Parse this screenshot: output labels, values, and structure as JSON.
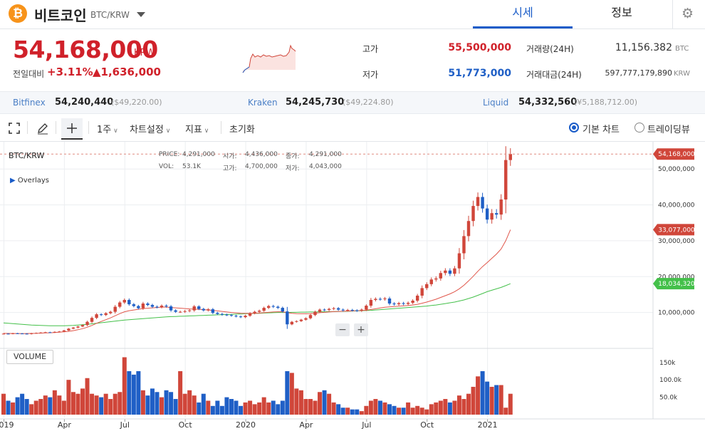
{
  "header": {
    "logo_symbol": "₿",
    "coin_name": "비트코인",
    "pair": "BTC/KRW",
    "tabs": [
      {
        "label": "시세",
        "active": true
      },
      {
        "label": "정보",
        "active": false
      }
    ]
  },
  "price": {
    "current": "54,168,000",
    "unit": "KRW",
    "change_label": "전일대비",
    "change_pct": "+3.11%",
    "change_val": "▲1,636,000",
    "high_label": "고가",
    "high": "55,500,000",
    "low_label": "저가",
    "low": "51,773,000",
    "volume_label": "거래량(24H)",
    "volume": "11,156.382",
    "volume_unit": "BTC",
    "amount_label": "거래대금(24H)",
    "amount": "597,777,179,890",
    "amount_unit": "KRW"
  },
  "exchanges": [
    {
      "name": "Bitfinex",
      "value": "54,240,440",
      "sub": "($49,220.00)"
    },
    {
      "name": "Kraken",
      "value": "54,245,730",
      "sub": "($49,224.80)"
    },
    {
      "name": "Liquid",
      "value": "54,332,560",
      "sub": "(¥5,188,712.00)"
    }
  ],
  "toolbar": {
    "period": "1주",
    "chart_settings": "차트설정",
    "indicators": "지표",
    "reset": "초기화",
    "basic_chart": "기본 차트",
    "tradingview": "트레이딩뷰"
  },
  "chart_data": {
    "type": "candlestick",
    "symbol": "BTC/KRW",
    "overlays_label": "Overlays",
    "volume_label": "VOLUME",
    "info": {
      "price_label": "PRICE:",
      "price": "4,291,000",
      "open_label": "시가:",
      "open": "4,436,000",
      "close_label": "종가:",
      "close": "4,291,000",
      "vol_label": "VOL:",
      "vol": "53.1K",
      "high_label": "고가:",
      "high": "4,700,000",
      "low_label": "저가:",
      "low": "4,043,000"
    },
    "y_ticks": [
      "50,000,000",
      "40,000,000",
      "30,000,000",
      "20,000,000",
      "10,000,000"
    ],
    "y_tick_values": [
      50000000,
      40000000,
      30000000,
      20000000,
      10000000
    ],
    "ylim": [
      0,
      56000000
    ],
    "vol_ticks": [
      "150k",
      "100.0k",
      "50.0k"
    ],
    "vol_tick_values": [
      150000,
      100000,
      50000
    ],
    "vol_max": 170000,
    "x_ticks": [
      "2019",
      "Apr",
      "Jul",
      "Oct",
      "2020",
      "Apr",
      "Jul",
      "Oct",
      "2021"
    ],
    "x_tick_index": [
      0,
      13,
      26,
      39,
      52,
      65,
      78,
      91,
      104
    ],
    "price_tag": "54,168,000",
    "ma_tag_red": "33,077,000",
    "ma_tag_green": "18,034,320",
    "colors": {
      "up": "#d0463a",
      "down": "#1f5fc6",
      "ma_short": "#e0564a",
      "ma_long": "#44c04a"
    },
    "closes": [
      4100000,
      4050000,
      4200000,
      4150000,
      4100000,
      4000000,
      4200000,
      4300000,
      4400000,
      4500000,
      4450000,
      4600000,
      4700000,
      5000000,
      5500000,
      5800000,
      6100000,
      6500000,
      7400000,
      8500000,
      9500000,
      9300000,
      9800000,
      10200000,
      11600000,
      12800000,
      13500000,
      12300000,
      11800000,
      11200000,
      12500000,
      12100000,
      11600000,
      11500000,
      11900000,
      11700000,
      10600000,
      10200000,
      10200000,
      10400000,
      10600000,
      11700000,
      11000000,
      10600000,
      10900000,
      9900000,
      9600000,
      9400000,
      9300000,
      9100000,
      8900000,
      8700000,
      9100000,
      9800000,
      10200000,
      10500000,
      11300000,
      11800000,
      11600000,
      11300000,
      10300000,
      6700000,
      7400000,
      7600000,
      8000000,
      8400000,
      9300000,
      10200000,
      10800000,
      10700000,
      11000000,
      11200000,
      10800000,
      10600000,
      10700000,
      10600000,
      10500000,
      10800000,
      11900000,
      13500000,
      13800000,
      13700000,
      13900000,
      12500000,
      12300000,
      12600000,
      12400000,
      12700000,
      13300000,
      14700000,
      16800000,
      17900000,
      19200000,
      19500000,
      21000000,
      21700000,
      20800000,
      22300000,
      26500000,
      31300000,
      35500000,
      39700000,
      42200000,
      39000000,
      35900000,
      37700000,
      37300000,
      41500000,
      52500000,
      54168000
    ],
    "volumes": [
      60000,
      40000,
      35000,
      50000,
      60000,
      45000,
      30000,
      40000,
      45000,
      55000,
      50000,
      70000,
      55000,
      40000,
      100000,
      65000,
      60000,
      75000,
      105000,
      60000,
      55000,
      50000,
      60000,
      45000,
      60000,
      65000,
      165000,
      125000,
      115000,
      125000,
      70000,
      55000,
      75000,
      65000,
      50000,
      70000,
      65000,
      45000,
      125000,
      60000,
      70000,
      55000,
      35000,
      60000,
      40000,
      25000,
      40000,
      25000,
      50000,
      45000,
      40000,
      25000,
      35000,
      40000,
      30000,
      35000,
      50000,
      35000,
      40000,
      30000,
      40000,
      125000,
      120000,
      75000,
      70000,
      45000,
      45000,
      40000,
      65000,
      70000,
      60000,
      35000,
      30000,
      20000,
      20000,
      15000,
      15000,
      10000,
      25000,
      40000,
      45000,
      40000,
      35000,
      30000,
      25000,
      20000,
      20000,
      35000,
      20000,
      25000,
      20000,
      15000,
      30000,
      35000,
      40000,
      45000,
      35000,
      40000,
      55000,
      45000,
      60000,
      80000,
      110000,
      125000,
      95000,
      80000,
      85000,
      85000,
      20000,
      60000
    ],
    "ma_short": [
      4200000,
      4180000,
      4160000,
      4150000,
      4140000,
      4150000,
      4170000,
      4200000,
      4250000,
      4300000,
      4350000,
      4420000,
      4500000,
      4600000,
      4750000,
      4950000,
      5200000,
      5500000,
      5900000,
      6400000,
      7000000,
      7500000,
      8000000,
      8500000,
      9100000,
      9700000,
      10200000,
      10500000,
      10700000,
      10900000,
      11100000,
      11200000,
      11300000,
      11400000,
      11500000,
      11500000,
      11400000,
      11300000,
      11200000,
      11100000,
      11000000,
      10950000,
      10900000,
      10800000,
      10700000,
      10600000,
      10450000,
      10300000,
      10150000,
      10000000,
      9900000,
      9800000,
      9750000,
      9750000,
      9800000,
      9850000,
      9950000,
      10050000,
      10150000,
      10200000,
      10200000,
      9950000,
      9800000,
      9700000,
      9650000,
      9650000,
      9700000,
      9800000,
      9950000,
      10050000,
      10150000,
      10250000,
      10300000,
      10350000,
      10400000,
      10450000,
      10500000,
      10550000,
      10650000,
      10850000,
      11050000,
      11250000,
      11450000,
      11550000,
      11650000,
      11750000,
      11850000,
      11950000,
      12100000,
      12300000,
      12600000,
      12900000,
      13300000,
      13700000,
      14200000,
      14700000,
      15200000,
      15800000,
      16600000,
      17600000,
      18800000,
      20100000,
      21500000,
      22800000,
      23900000,
      25100000,
      26300000,
      27700000,
      30000000,
      33077000
    ],
    "ma_long": [
      7100000,
      7000000,
      6900000,
      6800000,
      6700000,
      6600000,
      6500000,
      6450000,
      6400000,
      6350000,
      6300000,
      6300000,
      6300000,
      6300000,
      6350000,
      6400000,
      6500000,
      6600000,
      6700000,
      6850000,
      7000000,
      7150000,
      7300000,
      7450000,
      7600000,
      7750000,
      7900000,
      8000000,
      8100000,
      8200000,
      8300000,
      8400000,
      8500000,
      8600000,
      8700000,
      8800000,
      8850000,
      8900000,
      8950000,
      9000000,
      9050000,
      9100000,
      9150000,
      9200000,
      9250000,
      9300000,
      9350000,
      9400000,
      9450000,
      9500000,
      9550000,
      9600000,
      9650000,
      9700000,
      9750000,
      9800000,
      9850000,
      9900000,
      9950000,
      10000000,
      10000000,
      10000000,
      10050000,
      10050000,
      10100000,
      10100000,
      10150000,
      10150000,
      10200000,
      10200000,
      10250000,
      10250000,
      10300000,
      10300000,
      10350000,
      10400000,
      10450000,
      10500000,
      10550000,
      10600000,
      10700000,
      10800000,
      10900000,
      11000000,
      11100000,
      11200000,
      11300000,
      11400000,
      11500000,
      11600000,
      11700000,
      11800000,
      11950000,
      12100000,
      12300000,
      12500000,
      12700000,
      12900000,
      13200000,
      13500000,
      13900000,
      14300000,
      14800000,
      15300000,
      15800000,
      16200000,
      16600000,
      17000000,
      17500000,
      18034320
    ]
  }
}
